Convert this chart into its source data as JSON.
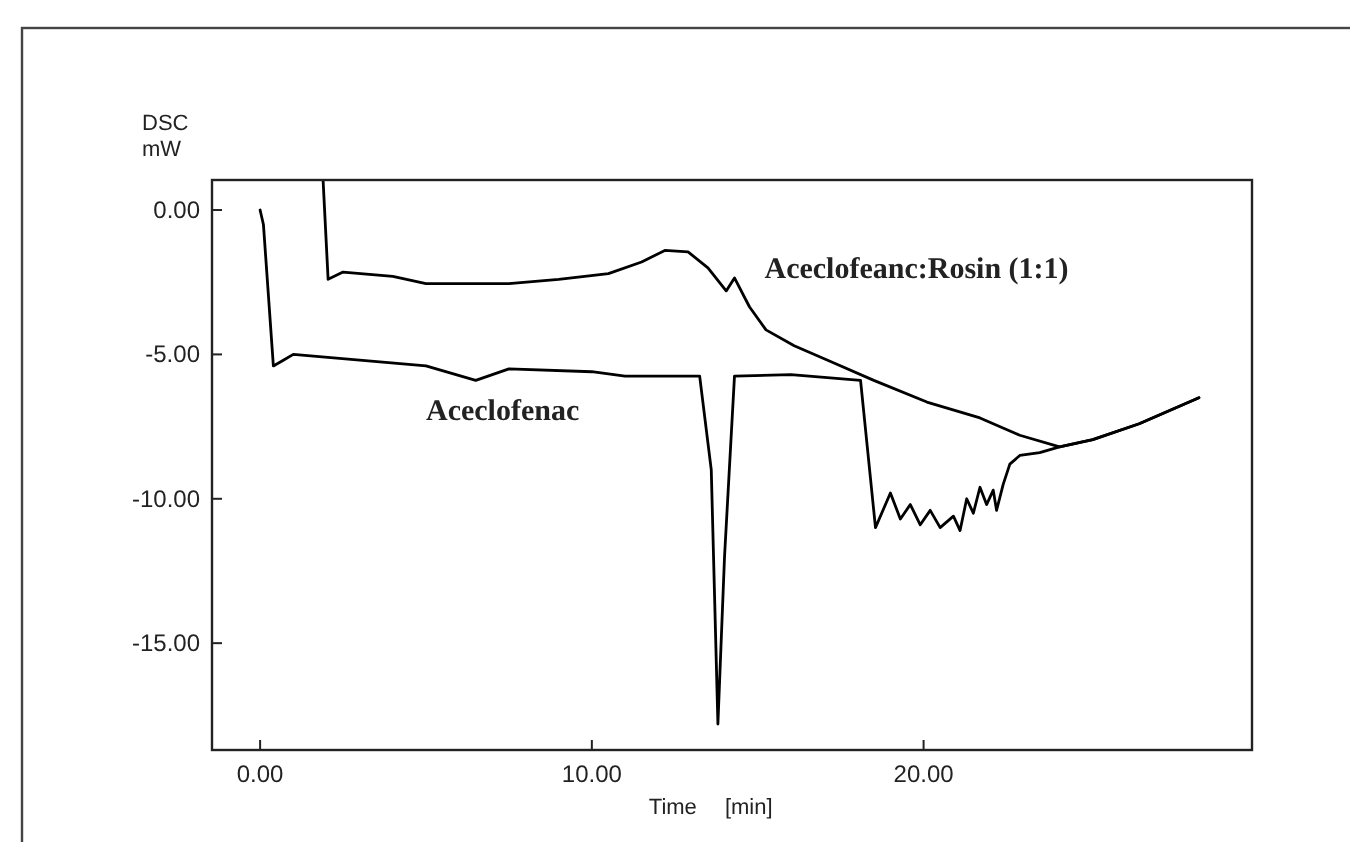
{
  "chart_data": {
    "type": "line",
    "xlabel": "Time [min]",
    "ylabel": "DSC mW",
    "xlim": [
      -1.45,
      29.9
    ],
    "ylim": [
      -18.7,
      1.04
    ],
    "xticks": [
      {
        "value": 0,
        "label": "0.00"
      },
      {
        "value": 10,
        "label": "10.00"
      },
      {
        "value": 20,
        "label": "20.00"
      }
    ],
    "yticks": [
      {
        "value": 0,
        "label": "0.00"
      },
      {
        "value": -5,
        "label": "-5.00"
      },
      {
        "value": -10,
        "label": "-10.00"
      },
      {
        "value": -15,
        "label": "-15.00"
      }
    ],
    "grid": false,
    "marker": "none",
    "line_style": "solid",
    "series": [
      {
        "name": "Aceclofenac",
        "color": "#000000",
        "x": [
          0,
          0.1,
          0.4,
          0.7,
          1.0,
          3,
          5,
          6.5,
          7.5,
          10,
          11,
          13.25,
          13.6,
          13.8,
          14.0,
          14.3,
          16,
          18.1,
          18.55,
          19.0,
          19.3,
          19.6,
          19.9,
          20.2,
          20.5,
          20.9,
          21.1,
          21.3,
          21.5,
          21.7,
          21.9,
          22.1,
          22.2,
          22.4,
          22.6,
          22.9,
          23.5,
          24.1,
          25.1,
          26.5,
          28.3
        ],
        "values": [
          0,
          -0.5,
          -5.4,
          -5.2,
          -5.0,
          -5.2,
          -5.4,
          -5.9,
          -5.5,
          -5.6,
          -5.75,
          -5.75,
          -9,
          -17.8,
          -12,
          -5.75,
          -5.7,
          -5.9,
          -11.0,
          -9.8,
          -10.7,
          -10.2,
          -10.9,
          -10.4,
          -11.0,
          -10.6,
          -11.1,
          -10.0,
          -10.5,
          -9.6,
          -10.2,
          -9.7,
          -10.4,
          -9.5,
          -8.8,
          -8.5,
          -8.4,
          -8.2,
          -7.95,
          -7.4,
          -6.5
        ]
      },
      {
        "name": "Aceclofeanc:Rosin (1:1)",
        "color": "#000000",
        "x": [
          1.9,
          2.05,
          2.5,
          4,
          5,
          7.5,
          9,
          10.5,
          11.5,
          12.2,
          12.9,
          13.5,
          14.05,
          14.3,
          14.75,
          15.25,
          16.1,
          17.3,
          18.5,
          20.1,
          21.7,
          22.9,
          24.1,
          25.1,
          26.5,
          28.3
        ],
        "values": [
          1.0,
          -2.4,
          -2.15,
          -2.3,
          -2.55,
          -2.55,
          -2.4,
          -2.2,
          -1.8,
          -1.4,
          -1.45,
          -2.0,
          -2.8,
          -2.35,
          -3.35,
          -4.15,
          -4.7,
          -5.3,
          -5.9,
          -6.65,
          -7.2,
          -7.8,
          -8.2,
          -7.95,
          -7.4,
          -6.5
        ]
      }
    ]
  }
}
